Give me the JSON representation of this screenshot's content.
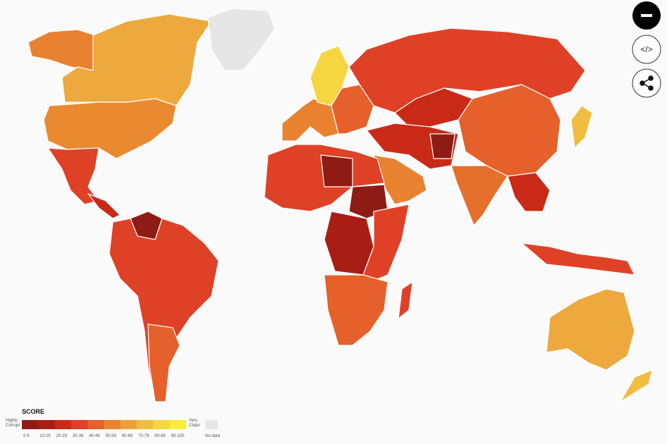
{
  "legend": {
    "title": "SCORE",
    "low_label": "Highly Corrupt",
    "high_label": "Very Clean",
    "bins": [
      {
        "label": "0-9",
        "color": "#8e1b14"
      },
      {
        "label": "10-19",
        "color": "#a81e14"
      },
      {
        "label": "20-29",
        "color": "#c92a18"
      },
      {
        "label": "30-39",
        "color": "#df4126"
      },
      {
        "label": "40-49",
        "color": "#e5602a"
      },
      {
        "label": "50-59",
        "color": "#e98230"
      },
      {
        "label": "60-69",
        "color": "#eda03a"
      },
      {
        "label": "70-79",
        "color": "#f1bd40"
      },
      {
        "label": "80-89",
        "color": "#f5d640"
      },
      {
        "label": "90-100",
        "color": "#fbec3a"
      }
    ],
    "no_data": {
      "label": "No data",
      "color": "#e6e6e6"
    }
  },
  "controls": {
    "embed": "</>"
  }
}
